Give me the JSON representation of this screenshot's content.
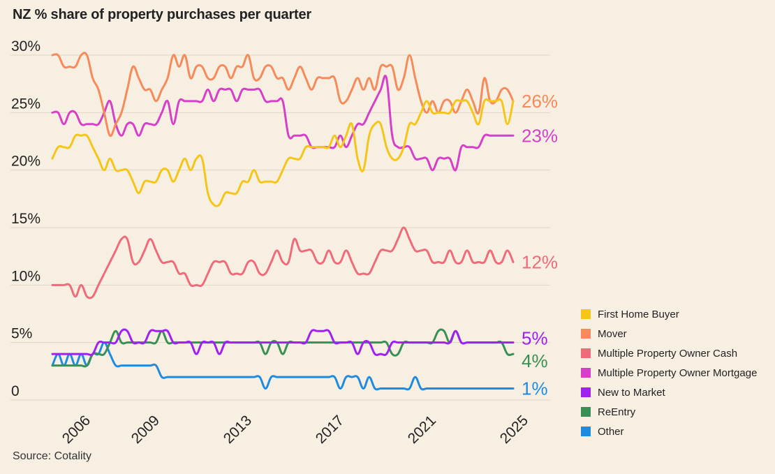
{
  "title": "NZ % share of property purchases per quarter",
  "source": "Source: Cotality",
  "chart_data": {
    "type": "line",
    "title": "NZ % share of property purchases per quarter",
    "xlabel": "",
    "ylabel": "",
    "ylim": [
      0,
      30
    ],
    "xlim": [
      2005,
      2025
    ],
    "y_ticks": [
      "0",
      "5%",
      "10%",
      "15%",
      "20%",
      "25%",
      "30%"
    ],
    "y_tick_values": [
      0,
      5,
      10,
      15,
      20,
      25,
      30
    ],
    "x_ticks": [
      "2006",
      "2009",
      "2013",
      "2017",
      "2021",
      "2025"
    ],
    "x_tick_values": [
      2006,
      2009,
      2013,
      2017,
      2021,
      2025
    ],
    "grid": "horizontal",
    "legend_position": "right",
    "x": [
      2005.0,
      2005.25,
      2005.5,
      2005.75,
      2006.0,
      2006.25,
      2006.5,
      2006.75,
      2007.0,
      2007.25,
      2007.5,
      2007.75,
      2008.0,
      2008.25,
      2008.5,
      2008.75,
      2009.0,
      2009.25,
      2009.5,
      2009.75,
      2010.0,
      2010.25,
      2010.5,
      2010.75,
      2011.0,
      2011.25,
      2011.5,
      2011.75,
      2012.0,
      2012.25,
      2012.5,
      2012.75,
      2013.0,
      2013.25,
      2013.5,
      2013.75,
      2014.0,
      2014.25,
      2014.5,
      2014.75,
      2015.0,
      2015.25,
      2015.5,
      2015.75,
      2016.0,
      2016.25,
      2016.5,
      2016.75,
      2017.0,
      2017.25,
      2017.5,
      2017.75,
      2018.0,
      2018.25,
      2018.5,
      2018.75,
      2019.0,
      2019.25,
      2019.5,
      2019.75,
      2020.0,
      2020.25,
      2020.5,
      2020.75,
      2021.0,
      2021.25,
      2021.5,
      2021.75,
      2022.0,
      2022.25,
      2022.5,
      2022.75,
      2023.0,
      2023.25,
      2023.5,
      2023.75,
      2024.0,
      2024.25,
      2024.5,
      2024.75,
      2025.0
    ],
    "series": [
      {
        "name": "First Home Buyer",
        "color": "#f5c518",
        "end_label": "",
        "values": [
          21,
          22,
          22,
          22,
          23,
          23,
          23,
          22,
          21,
          20,
          21,
          20,
          20,
          20,
          19,
          18,
          19,
          19,
          19,
          20,
          20,
          19,
          20,
          21,
          20,
          21,
          21,
          18,
          17,
          17,
          18,
          18,
          18,
          19,
          19,
          20,
          19,
          19,
          19,
          19,
          20,
          21,
          21,
          21,
          22,
          22,
          22,
          22,
          22,
          23,
          22,
          23,
          24,
          21,
          20,
          23,
          24,
          24,
          22,
          21,
          21,
          22,
          24,
          24,
          25,
          26,
          25,
          25,
          25,
          25,
          26,
          26,
          26,
          25,
          24,
          26,
          26,
          26,
          26,
          24,
          26
        ]
      },
      {
        "name": "Mover",
        "color": "#f78a5a",
        "end_label": "26%",
        "values": [
          30,
          30,
          29,
          29,
          29,
          30,
          30,
          28,
          27,
          25,
          23,
          24,
          25,
          27,
          29,
          28,
          27,
          27,
          26,
          27,
          28,
          30,
          29,
          30,
          28,
          29,
          29,
          28,
          28,
          29,
          29,
          28,
          29,
          29,
          30,
          28,
          28,
          29,
          29,
          28,
          28,
          27,
          28,
          29,
          28,
          27,
          28,
          28,
          28,
          28,
          26,
          26,
          27,
          28,
          27,
          28,
          27,
          29,
          29,
          29,
          27,
          28,
          30,
          28,
          26,
          25,
          26,
          25,
          26,
          26,
          25,
          26,
          27,
          26,
          25,
          28,
          26,
          26,
          27,
          27,
          26
        ]
      },
      {
        "name": "Multiple Property Owner Cash",
        "color": "#f06a7a",
        "end_label": "12%",
        "values": [
          10,
          10,
          10,
          10,
          9,
          10,
          9,
          9,
          10,
          11,
          12,
          13,
          14,
          14,
          12,
          12,
          13,
          14,
          13,
          12,
          12,
          12,
          11,
          11,
          10,
          10,
          10,
          11,
          12,
          12,
          12,
          11,
          11,
          11,
          12,
          12,
          11,
          11,
          12,
          13,
          12,
          12,
          14,
          13,
          13,
          13,
          12,
          12,
          13,
          12,
          12,
          13,
          12,
          11,
          11,
          11,
          12,
          13,
          13,
          13,
          14,
          15,
          14,
          13,
          13,
          13,
          12,
          12,
          12,
          13,
          12,
          12,
          13,
          12,
          12,
          12,
          13,
          12,
          12,
          13,
          12
        ]
      },
      {
        "name": "Multiple Property Owner Mortgage",
        "color": "#d63fc8",
        "end_label": "23%",
        "values": [
          25,
          25,
          24,
          25,
          25,
          24,
          24,
          24,
          24,
          25,
          26,
          24,
          23,
          24,
          24,
          23,
          24,
          24,
          24,
          25,
          26,
          24,
          26,
          26,
          26,
          26,
          26,
          27,
          26,
          27,
          27,
          27,
          26,
          27,
          27,
          27,
          27,
          26,
          26,
          26,
          26,
          23,
          23,
          23,
          23,
          22,
          22,
          22,
          22,
          22,
          23,
          22,
          23,
          24,
          24,
          25,
          26,
          27,
          28,
          23,
          22,
          22,
          22,
          21,
          21,
          21,
          20,
          21,
          21,
          21,
          20,
          22,
          22,
          22,
          22,
          23,
          23,
          23,
          23,
          23,
          23
        ]
      },
      {
        "name": "New to Market",
        "color": "#a020f0",
        "end_label": "5%",
        "values": [
          4,
          4,
          4,
          4,
          4,
          4,
          4,
          4,
          5,
          5,
          5,
          5,
          6,
          6,
          5,
          5,
          5,
          6,
          6,
          6,
          6,
          5,
          5,
          5,
          5,
          4,
          5,
          5,
          5,
          4,
          5,
          5,
          5,
          5,
          5,
          5,
          5,
          5,
          5,
          5,
          5,
          5,
          5,
          5,
          5,
          6,
          6,
          6,
          6,
          5,
          5,
          5,
          5,
          4,
          5,
          5,
          4,
          4,
          4,
          5,
          5,
          5,
          5,
          5,
          5,
          5,
          5,
          5,
          5,
          5,
          6,
          5,
          5,
          5,
          5,
          5,
          5,
          5,
          5,
          5,
          5
        ]
      },
      {
        "name": "ReEntry",
        "color": "#3a8f55",
        "end_label": "4%",
        "values": [
          3,
          3,
          3,
          3,
          3,
          3,
          3,
          4,
          4,
          4,
          5,
          6,
          5,
          5,
          5,
          5,
          5,
          5,
          5,
          6,
          5,
          5,
          5,
          5,
          5,
          5,
          5,
          5,
          5,
          5,
          5,
          5,
          5,
          5,
          5,
          5,
          5,
          4,
          5,
          5,
          4,
          5,
          5,
          5,
          5,
          5,
          5,
          5,
          5,
          5,
          5,
          5,
          5,
          5,
          5,
          5,
          5,
          5,
          5,
          4,
          4,
          5,
          5,
          5,
          5,
          5,
          5,
          6,
          6,
          5,
          6,
          5,
          5,
          5,
          5,
          5,
          5,
          5,
          5,
          4,
          4
        ]
      },
      {
        "name": "Other",
        "color": "#1f8be0",
        "end_label": "1%",
        "values": [
          3,
          4,
          3,
          4,
          3,
          4,
          3,
          4,
          4,
          5,
          4,
          3,
          3,
          3,
          3,
          3,
          3,
          3,
          3,
          2,
          2,
          2,
          2,
          2,
          2,
          2,
          2,
          2,
          2,
          2,
          2,
          2,
          2,
          2,
          2,
          2,
          2,
          1,
          2,
          2,
          2,
          2,
          2,
          2,
          2,
          2,
          2,
          2,
          2,
          2,
          1,
          2,
          2,
          2,
          1,
          2,
          1,
          1,
          1,
          1,
          1,
          1,
          1,
          2,
          1,
          1,
          1,
          1,
          1,
          1,
          1,
          1,
          1,
          1,
          1,
          1,
          1,
          1,
          1,
          1,
          1
        ]
      }
    ]
  }
}
